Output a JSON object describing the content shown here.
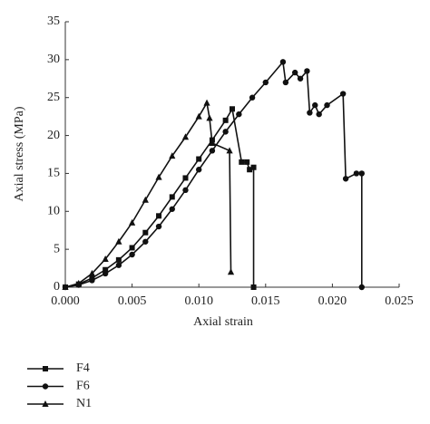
{
  "chart_data": {
    "type": "line",
    "xlabel": "Axial strain",
    "ylabel": "Axial stress (MPa)",
    "xlim": [
      0,
      0.025
    ],
    "ylim": [
      0,
      35
    ],
    "xticks": [
      {
        "value": 0,
        "label": "0.000"
      },
      {
        "value": 0.005,
        "label": "0.005"
      },
      {
        "value": 0.01,
        "label": "0.010"
      },
      {
        "value": 0.015,
        "label": "0.015"
      },
      {
        "value": 0.02,
        "label": "0.020"
      },
      {
        "value": 0.025,
        "label": "0.025"
      }
    ],
    "yticks": [
      0,
      5,
      10,
      15,
      20,
      25,
      30,
      35
    ],
    "legend": "bottom-left",
    "series": [
      {
        "name": "F4",
        "color": "#111111",
        "marker": "square",
        "x": [
          0,
          0.001,
          0.002,
          0.003,
          0.004,
          0.005,
          0.006,
          0.007,
          0.008,
          0.009,
          0.01,
          0.011,
          0.012,
          0.0125,
          0.0132,
          0.0136,
          0.0138,
          0.0141,
          0.0141
        ],
        "values": [
          0,
          0.4,
          1.2,
          2.3,
          3.6,
          5.2,
          7.2,
          9.4,
          11.9,
          14.4,
          16.9,
          19.4,
          22,
          23.5,
          16.5,
          16.5,
          15.5,
          15.8,
          0
        ]
      },
      {
        "name": "F6",
        "color": "#111111",
        "marker": "circle",
        "x": [
          0,
          0.001,
          0.002,
          0.003,
          0.004,
          0.005,
          0.006,
          0.007,
          0.008,
          0.009,
          0.01,
          0.011,
          0.012,
          0.013,
          0.014,
          0.015,
          0.0163,
          0.0165,
          0.0172,
          0.0176,
          0.0181,
          0.0183,
          0.0187,
          0.019,
          0.0196,
          0.0208,
          0.021,
          0.0218,
          0.0222,
          0.0222
        ],
        "values": [
          0,
          0.3,
          0.9,
          1.8,
          2.9,
          4.3,
          6,
          8,
          10.3,
          12.8,
          15.5,
          18,
          20.5,
          22.8,
          25,
          27,
          29.7,
          27,
          28.3,
          27.5,
          28.5,
          23,
          24,
          22.8,
          24,
          25.5,
          14.3,
          15,
          15,
          0
        ]
      },
      {
        "name": "N1",
        "color": "#111111",
        "marker": "triangle",
        "x": [
          0,
          0.001,
          0.002,
          0.003,
          0.004,
          0.005,
          0.006,
          0.007,
          0.008,
          0.009,
          0.01,
          0.0106,
          0.0108,
          0.011,
          0.0123,
          0.0124
        ],
        "values": [
          0,
          0.5,
          1.8,
          3.7,
          6,
          8.5,
          11.5,
          14.5,
          17.3,
          19.8,
          22.5,
          24.3,
          22.3,
          19,
          18,
          2
        ]
      }
    ]
  }
}
